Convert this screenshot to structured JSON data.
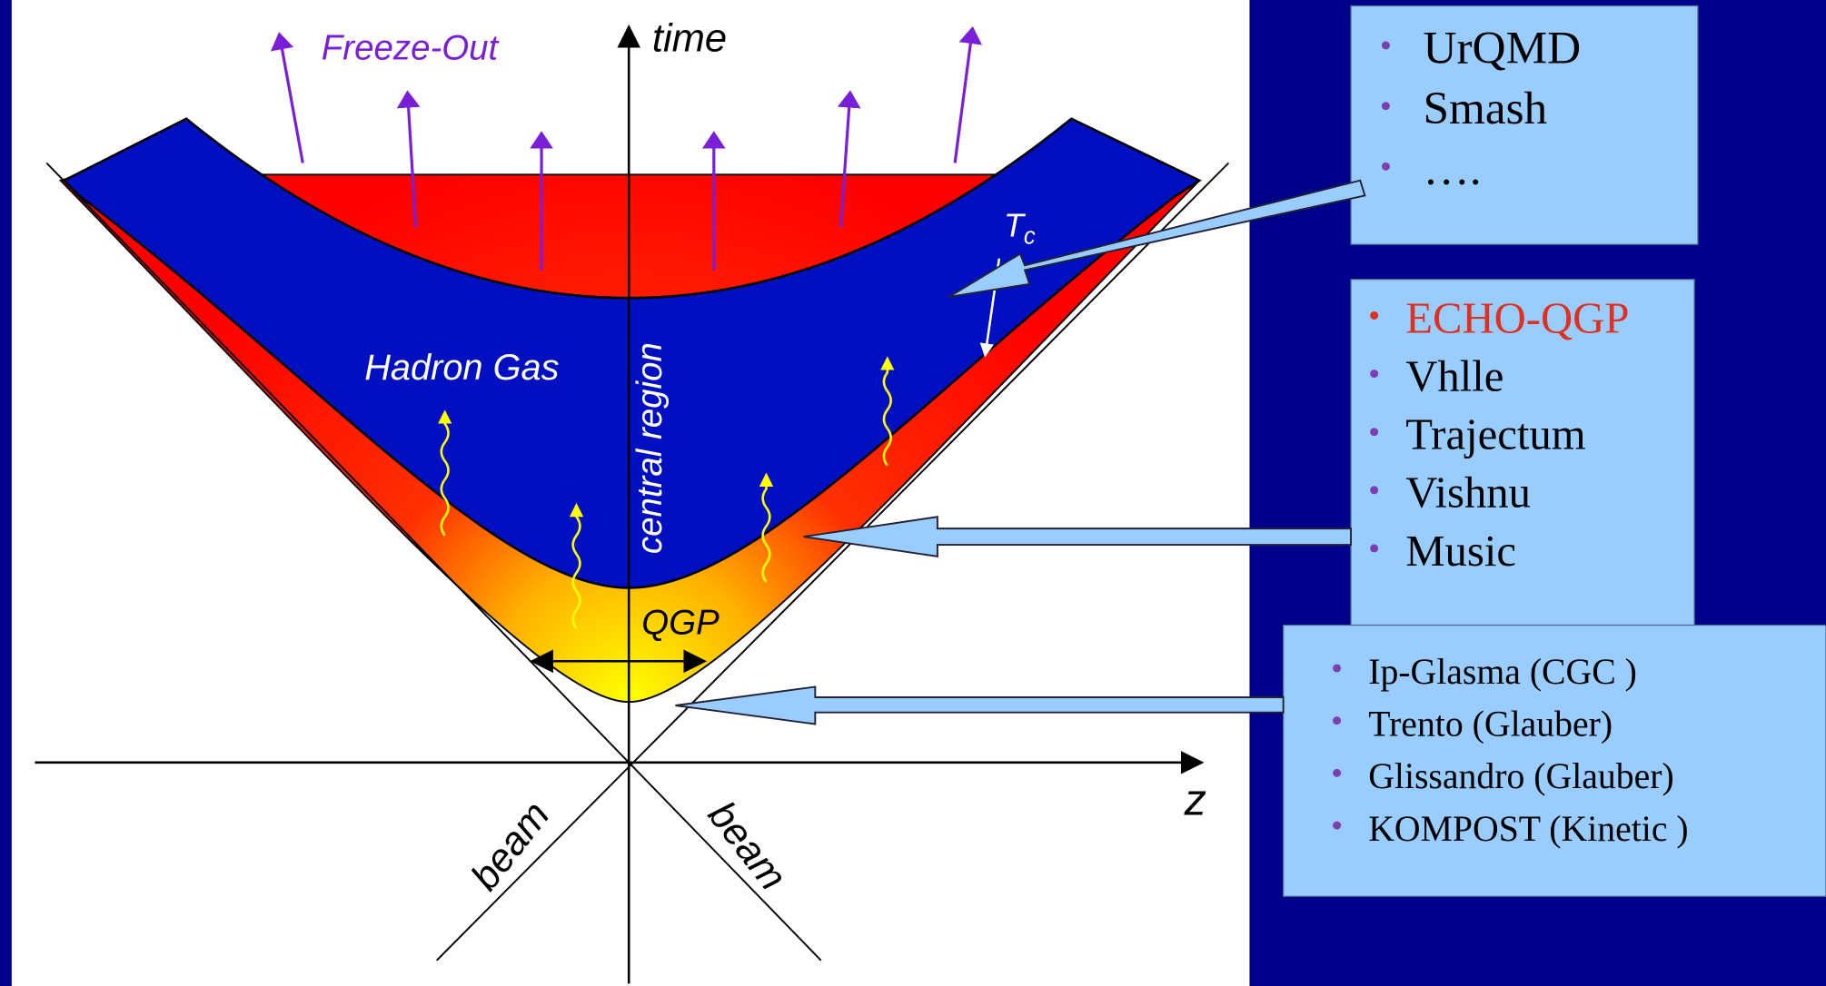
{
  "diagram": {
    "labels": {
      "time": "time",
      "z": "z",
      "freeze_out": "Freeze-Out",
      "hadron_gas": "Hadron Gas",
      "central_region": "central region",
      "qgp": "QGP",
      "tc": "T",
      "tc_sub": "c",
      "beam_left": "beam",
      "beam_right": "beam"
    }
  },
  "boxes": [
    {
      "items": [
        "UrQMD",
        "Smash",
        "…."
      ]
    },
    {
      "items": [
        "ECHO-QGP",
        "Vhlle",
        "Trajectum",
        "Vishnu",
        "Music"
      ]
    },
    {
      "items": [
        "Ip-Glasma (CGC )",
        "Trento (Glauber)",
        "Glissandro (Glauber)",
        "KOMPOST (Kinetic )"
      ]
    }
  ]
}
